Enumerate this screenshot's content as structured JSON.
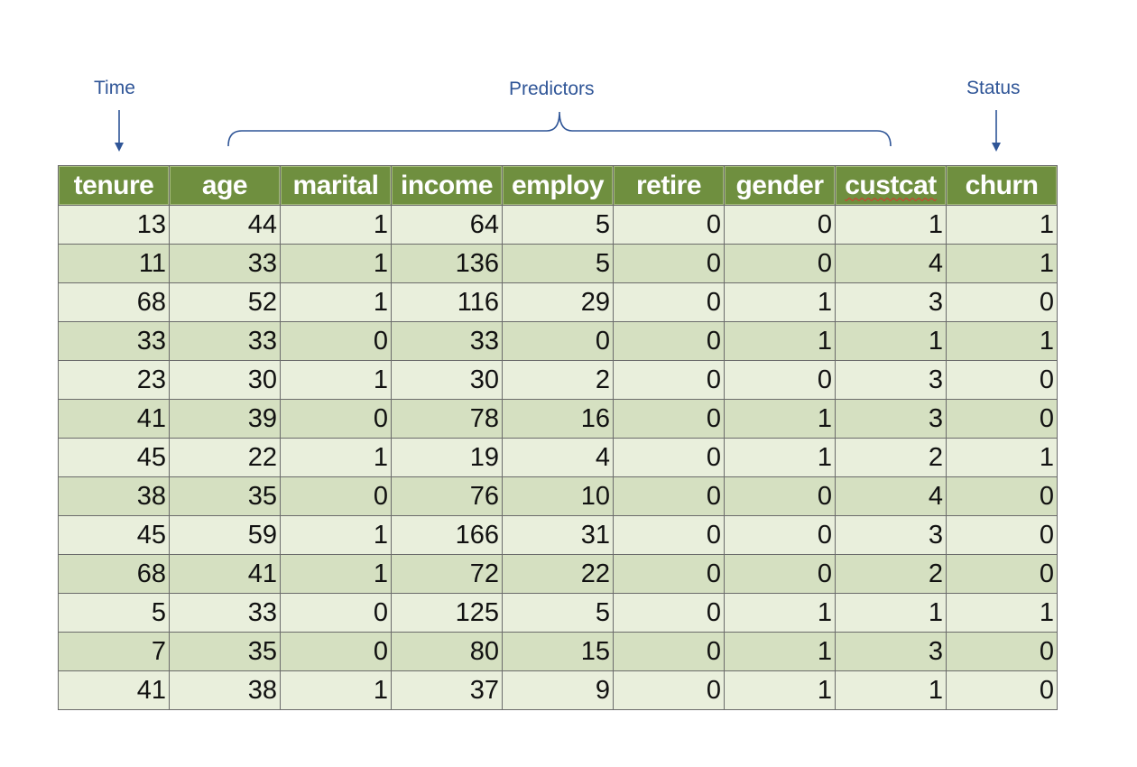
{
  "annotations": {
    "time_label": "Time",
    "predictors_label": "Predictors",
    "status_label": "Status"
  },
  "colors": {
    "annotation": "#2f5597",
    "header_bg": "#6f8f3f",
    "row_light": "#e9efdc",
    "row_dark": "#d5e0c1"
  },
  "table": {
    "columns": [
      "tenure",
      "age",
      "marital",
      "income",
      "employ",
      "retire",
      "gender",
      "custcat",
      "churn"
    ],
    "rows": [
      [
        13,
        44,
        1,
        64,
        5,
        0,
        0,
        1,
        1
      ],
      [
        11,
        33,
        1,
        136,
        5,
        0,
        0,
        4,
        1
      ],
      [
        68,
        52,
        1,
        116,
        29,
        0,
        1,
        3,
        0
      ],
      [
        33,
        33,
        0,
        33,
        0,
        0,
        1,
        1,
        1
      ],
      [
        23,
        30,
        1,
        30,
        2,
        0,
        0,
        3,
        0
      ],
      [
        41,
        39,
        0,
        78,
        16,
        0,
        1,
        3,
        0
      ],
      [
        45,
        22,
        1,
        19,
        4,
        0,
        1,
        2,
        1
      ],
      [
        38,
        35,
        0,
        76,
        10,
        0,
        0,
        4,
        0
      ],
      [
        45,
        59,
        1,
        166,
        31,
        0,
        0,
        3,
        0
      ],
      [
        68,
        41,
        1,
        72,
        22,
        0,
        0,
        2,
        0
      ],
      [
        5,
        33,
        0,
        125,
        5,
        0,
        1,
        1,
        1
      ],
      [
        7,
        35,
        0,
        80,
        15,
        0,
        1,
        3,
        0
      ],
      [
        41,
        38,
        1,
        37,
        9,
        0,
        1,
        1,
        0
      ]
    ]
  }
}
